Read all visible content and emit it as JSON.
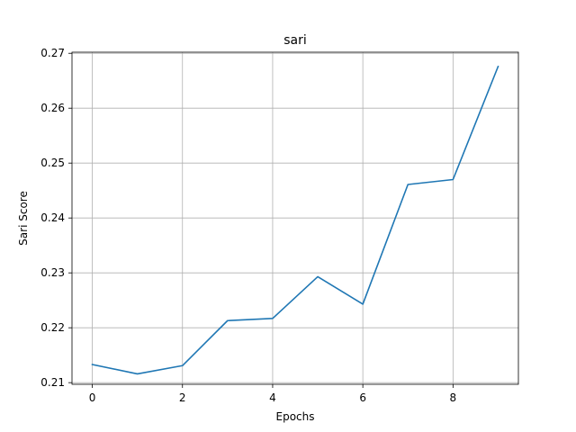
{
  "chart_data": {
    "type": "line",
    "title": "sari",
    "xlabel": "Epochs",
    "ylabel": "Sari Score",
    "grid": true,
    "xlim": [
      -0.45,
      9.45
    ],
    "ylim": [
      0.2097,
      0.2702
    ],
    "xticks": [
      0,
      2,
      4,
      6,
      8
    ],
    "xtick_labels": [
      "0",
      "2",
      "4",
      "6",
      "8"
    ],
    "yticks": [
      0.21,
      0.22,
      0.23,
      0.24,
      0.25,
      0.26,
      0.27
    ],
    "ytick_labels": [
      "0.21",
      "0.22",
      "0.23",
      "0.24",
      "0.25",
      "0.26",
      "0.27"
    ],
    "series": [
      {
        "color": "#1f77b4",
        "x": [
          0,
          1,
          2,
          3,
          4,
          5,
          6,
          7,
          8,
          9
        ],
        "y": [
          0.2133,
          0.2116,
          0.2131,
          0.2213,
          0.2217,
          0.2293,
          0.2243,
          0.2461,
          0.247,
          0.2676
        ]
      }
    ]
  }
}
